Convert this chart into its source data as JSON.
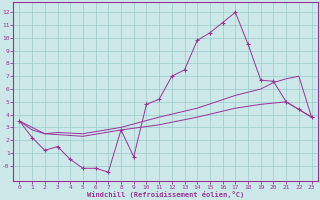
{
  "bg_color": "#cce8e8",
  "line_color": "#993399",
  "grid_color": "#99cccc",
  "xlabel": "Windchill (Refroidissement éolien,°C)",
  "xlim": [
    -0.5,
    23.5
  ],
  "ylim": [
    -1.2,
    12.8
  ],
  "xticks": [
    0,
    1,
    2,
    3,
    4,
    5,
    6,
    7,
    8,
    9,
    10,
    11,
    12,
    13,
    14,
    15,
    16,
    17,
    18,
    19,
    20,
    21,
    22,
    23
  ],
  "yticks": [
    0,
    1,
    2,
    3,
    4,
    5,
    6,
    7,
    8,
    9,
    10,
    11,
    12
  ],
  "yticklabels": [
    "-0",
    "1",
    "2",
    "3",
    "4",
    "5",
    "6",
    "7",
    "8",
    "9",
    "10",
    "11",
    "12"
  ],
  "curve1_x": [
    0,
    1,
    2,
    3,
    4,
    5,
    6,
    7,
    8,
    9,
    10,
    11,
    12,
    13,
    14,
    15,
    16,
    17,
    18,
    19,
    20,
    21,
    22,
    23
  ],
  "curve1_y": [
    3.5,
    2.2,
    1.2,
    1.5,
    0.5,
    -0.2,
    -0.2,
    -0.5,
    2.8,
    0.7,
    4.8,
    5.2,
    7.0,
    7.5,
    9.8,
    10.4,
    11.2,
    12.0,
    9.5,
    6.7,
    6.6,
    5.0,
    4.4,
    3.8
  ],
  "curve2_x": [
    0,
    1,
    2,
    3,
    5,
    8,
    11,
    14,
    17,
    19,
    20,
    21,
    22,
    23
  ],
  "curve2_y": [
    3.5,
    2.8,
    2.5,
    2.6,
    2.5,
    3.0,
    3.8,
    4.5,
    5.5,
    6.0,
    6.5,
    6.8,
    7.0,
    3.8
  ],
  "curve3_x": [
    0,
    2,
    5,
    8,
    11,
    14,
    17,
    19,
    21,
    23
  ],
  "curve3_y": [
    3.5,
    2.5,
    2.3,
    2.8,
    3.2,
    3.8,
    4.5,
    4.8,
    5.0,
    3.8
  ]
}
